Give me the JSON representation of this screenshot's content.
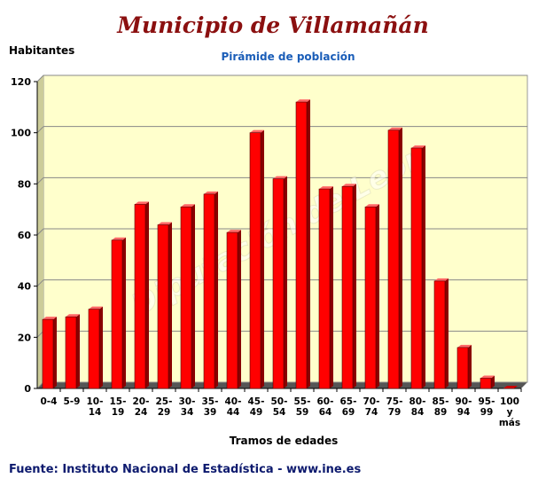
{
  "page": {
    "title": "Municipio de Villamañán",
    "footer": "Fuente: Instituto Nacional de Estadística - www.ine.es",
    "watermark": "Diputación de León"
  },
  "chart_data": {
    "type": "bar",
    "title": "Pirámide de población",
    "xlabel": "Tramos de edades",
    "ylabel": "Habitantes",
    "ylim": [
      0,
      120
    ],
    "yticks": [
      0,
      20,
      40,
      60,
      80,
      100,
      120
    ],
    "grid": true,
    "bar_color": "#ff0000",
    "plot_background": "#ffffcc",
    "categories": [
      [
        "0-4"
      ],
      [
        "5-9"
      ],
      [
        "10-",
        "14"
      ],
      [
        "15-",
        "19"
      ],
      [
        "20-",
        "24"
      ],
      [
        "25-",
        "29"
      ],
      [
        "30-",
        "34"
      ],
      [
        "35-",
        "39"
      ],
      [
        "40-",
        "44"
      ],
      [
        "45-",
        "49"
      ],
      [
        "50-",
        "54"
      ],
      [
        "55-",
        "59"
      ],
      [
        "60-",
        "64"
      ],
      [
        "65-",
        "69"
      ],
      [
        "70-",
        "74"
      ],
      [
        "75-",
        "79"
      ],
      [
        "80-",
        "84"
      ],
      [
        "85-",
        "89"
      ],
      [
        "90-",
        "94"
      ],
      [
        "95-",
        "99"
      ],
      [
        "100",
        "y",
        "más"
      ]
    ],
    "values": [
      27,
      28,
      31,
      58,
      72,
      64,
      71,
      76,
      61,
      100,
      82,
      112,
      78,
      79,
      71,
      101,
      94,
      42,
      16,
      4,
      0
    ]
  }
}
